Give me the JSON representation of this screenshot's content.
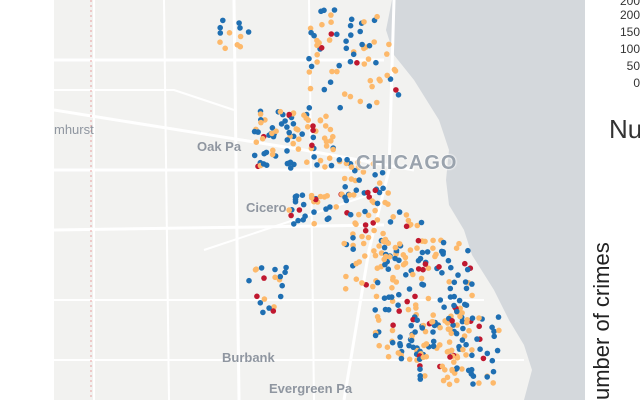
{
  "map": {
    "place_labels": {
      "elmhurst": "mhurst",
      "oak_park": "Oak Pa",
      "chicago": "CHICAGO",
      "cicero": "Cicero",
      "burbank": "Burbank",
      "evergreen_park": "Evergreen Pa"
    },
    "colors": {
      "land": "#f2f2f0",
      "water": "#d4d8dc",
      "roads": "#ffffff",
      "dot_orange": "#fdb96b",
      "dot_blue": "#1f6fb2",
      "dot_red": "#c0182f"
    },
    "point_categories": [
      "orange",
      "blue",
      "red"
    ]
  },
  "chart": {
    "tick_labels": [
      "200",
      "150",
      "100",
      "50",
      "0"
    ],
    "title_fragment": "Nu",
    "y_axis_label": "umber of crimes"
  }
}
